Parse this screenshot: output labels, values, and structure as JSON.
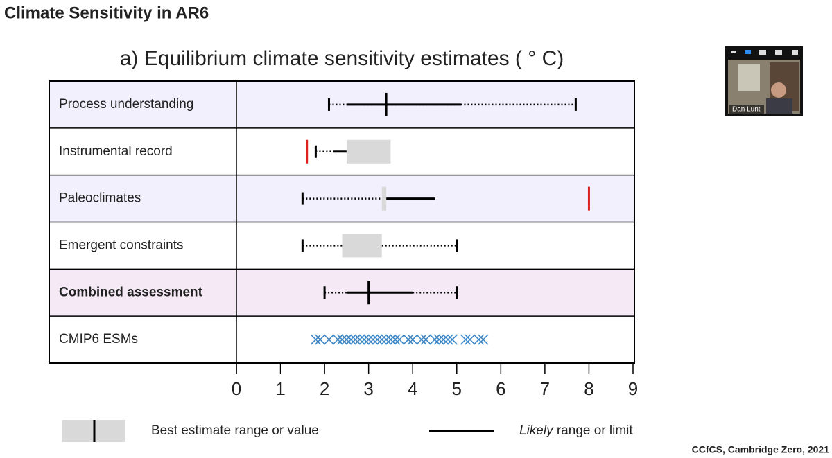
{
  "slide": {
    "title": "Climate Sensitivity in AR6",
    "footer": "CCfCS, Cambridge Zero, 2021",
    "participant": "Dan Lunt"
  },
  "chart_data": {
    "type": "range",
    "title": "a) Equilibrium climate sensitivity estimates ( ° C)",
    "xlim": [
      0,
      9
    ],
    "xticks": [
      0,
      1,
      2,
      3,
      4,
      5,
      6,
      7,
      8,
      9
    ],
    "rows": [
      {
        "label": "Process understanding",
        "background": "#f1f0fc",
        "lines": [
          {
            "style": "dotted",
            "from": 2.1,
            "to": 7.7
          },
          {
            "style": "solid",
            "from": 2.5,
            "to": 5.1
          }
        ],
        "ticks": [
          2.1,
          7.7
        ],
        "best": 3.4
      },
      {
        "label": "Instrumental record",
        "background": "#ffffff",
        "lines": [
          {
            "style": "dotted",
            "from": 1.8,
            "to": 2.2
          },
          {
            "style": "solid",
            "from": 2.2,
            "to": 2.5
          }
        ],
        "ticks": [
          1.8
        ],
        "box": [
          2.5,
          3.5
        ],
        "red": [
          1.6
        ]
      },
      {
        "label": "Paleoclimates",
        "background": "#f1f0fc",
        "lines": [
          {
            "style": "dotted",
            "from": 1.5,
            "to": 3.3
          },
          {
            "style": "solid",
            "from": 3.4,
            "to": 4.5
          }
        ],
        "ticks": [
          1.5
        ],
        "box": [
          3.3,
          3.4
        ],
        "red": [
          8
        ]
      },
      {
        "label": "Emergent constraints",
        "background": "#ffffff",
        "lines": [
          {
            "style": "dotted",
            "from": 1.5,
            "to": 2.4
          },
          {
            "style": "dotted",
            "from": 3.3,
            "to": 5
          }
        ],
        "ticks": [
          1.5,
          5
        ],
        "box": [
          2.4,
          3.3
        ]
      },
      {
        "label": "Combined assessment",
        "background": "#f4e9f4",
        "bold": true,
        "lines": [
          {
            "style": "dotted",
            "from": 2,
            "to": 2.5
          },
          {
            "style": "solid",
            "from": 2.5,
            "to": 4
          },
          {
            "style": "dotted",
            "from": 4,
            "to": 5
          }
        ],
        "ticks": [
          2,
          5
        ],
        "best": 3
      },
      {
        "label": "CMIP6 ESMs",
        "background": "#ffffff",
        "points": [
          1.8,
          1.9,
          2.1,
          2.3,
          2.4,
          2.5,
          2.6,
          2.7,
          2.8,
          2.9,
          3.0,
          3.0,
          3.1,
          3.2,
          3.3,
          3.4,
          3.5,
          3.6,
          3.7,
          3.9,
          4.0,
          4.2,
          4.3,
          4.5,
          4.6,
          4.7,
          4.8,
          4.9,
          5.2,
          5.3,
          5.5,
          5.6
        ],
        "point_color": "#3a86c6"
      }
    ],
    "legend": {
      "best": "Best estimate range or value",
      "likely_italic": "Likely",
      "likely_rest": " range or limit"
    }
  }
}
